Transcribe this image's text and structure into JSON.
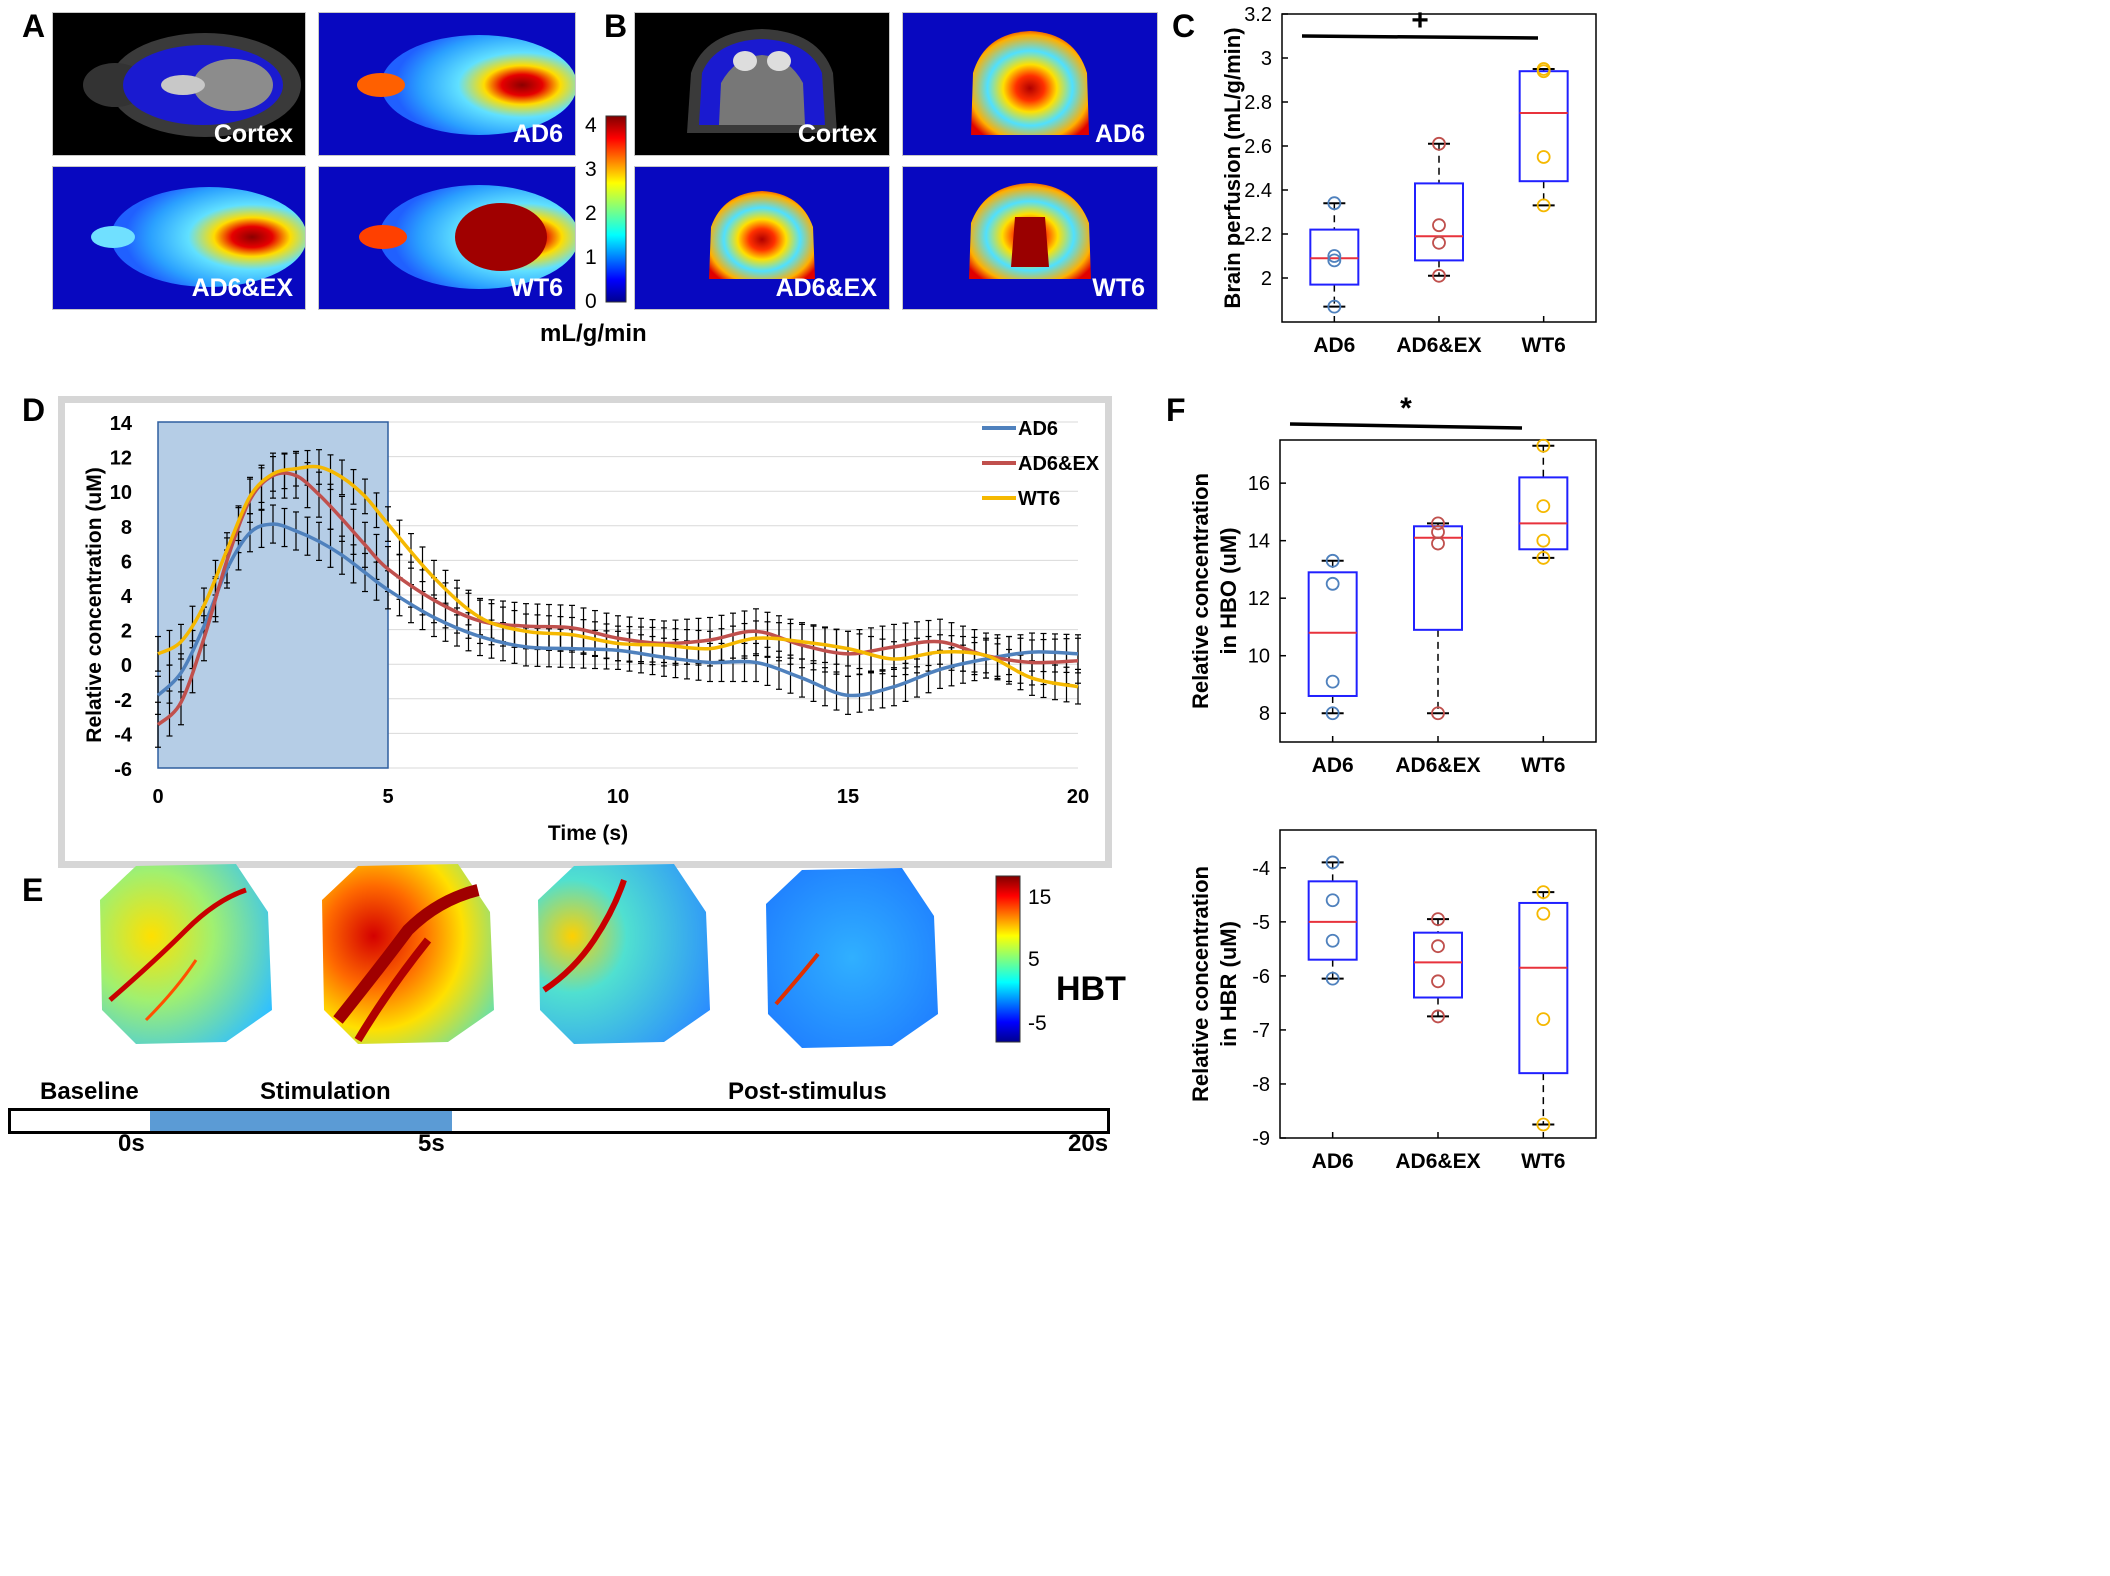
{
  "colors": {
    "ad6": "#4f81bd",
    "ad6ex": "#c0504d",
    "wt6": "#f5b800",
    "stim": "#b5cde6",
    "box": "#2020ff",
    "median": "#e8323c"
  },
  "panel_labels": {
    "a": "A",
    "b": "B",
    "c": "C",
    "d": "D",
    "e": "E",
    "f": "F"
  },
  "panel_a": {
    "cortex": "Cortex",
    "ad6": "AD6",
    "ad6ex": "AD6&EX",
    "wt6": "WT6"
  },
  "panel_b": {
    "cortex": "Cortex",
    "ad6": "AD6",
    "ad6ex": "AD6&EX",
    "wt6": "WT6"
  },
  "colorbar_cbf": {
    "ticks": [
      "4",
      "3",
      "2",
      "1",
      "0"
    ],
    "unit": "mL/g/min"
  },
  "colorbar_hbt": {
    "ticks": [
      "15",
      "5",
      "-5"
    ],
    "label": "HBT"
  },
  "timeline": {
    "baseline": "Baseline",
    "stimulation": "Stimulation",
    "post": "Post-stimulus",
    "t0": "0s",
    "t5": "5s",
    "t20": "20s"
  },
  "chart_data": [
    {
      "id": "C",
      "type": "box",
      "ylabel": "Brain perfusion (mL/g/min)",
      "ylim": [
        1.8,
        3.2
      ],
      "yticks": [
        2,
        2.2,
        2.4,
        2.6,
        2.8,
        3,
        3.2
      ],
      "categories": [
        "AD6",
        "AD6&EX",
        "WT6"
      ],
      "significance": "+",
      "boxes": [
        {
          "q1": 1.97,
          "median": 2.09,
          "q3": 2.22,
          "min": 1.87,
          "max": 2.34,
          "points": [
            2.34,
            2.1,
            2.08,
            1.87
          ]
        },
        {
          "q1": 2.08,
          "median": 2.19,
          "q3": 2.43,
          "min": 2.01,
          "max": 2.61,
          "points": [
            2.61,
            2.24,
            2.16,
            2.01
          ]
        },
        {
          "q1": 2.44,
          "median": 2.75,
          "q3": 2.94,
          "min": 2.33,
          "max": 2.95,
          "points": [
            2.95,
            2.94,
            2.55,
            2.33
          ]
        }
      ]
    },
    {
      "id": "D",
      "type": "line",
      "title": "",
      "xlabel": "Time (s)",
      "ylabel": "Relative concentration (uM)",
      "xlim": [
        0,
        20
      ],
      "ylim": [
        -6,
        14
      ],
      "xticks": [
        0,
        5,
        10,
        15,
        20
      ],
      "yticks": [
        -6,
        -4,
        -2,
        0,
        2,
        4,
        6,
        8,
        10,
        12,
        14
      ],
      "stimulus_window": [
        0,
        5
      ],
      "series": [
        {
          "name": "AD6",
          "color_key": "ad6",
          "error": 1.1,
          "x": [
            0,
            0.5,
            1,
            1.5,
            2,
            2.5,
            3,
            3.5,
            4,
            4.5,
            5,
            6,
            7,
            8,
            9,
            10,
            11,
            12,
            13,
            14,
            15,
            16,
            17,
            18,
            19,
            20
          ],
          "y": [
            -1.8,
            -0.5,
            2.2,
            5.5,
            7.6,
            8.1,
            7.7,
            7.1,
            6.3,
            5.3,
            4.3,
            2.7,
            1.6,
            1.0,
            0.9,
            0.8,
            0.4,
            0.1,
            0.1,
            -0.8,
            -1.8,
            -1.3,
            -0.3,
            0.3,
            0.7,
            0.6
          ]
        },
        {
          "name": "AD6&EX",
          "color_key": "ad6ex",
          "error": 1.3,
          "x": [
            0,
            0.5,
            1,
            1.5,
            2,
            2.5,
            3,
            3.5,
            4,
            4.5,
            5,
            6,
            7,
            8,
            9,
            10,
            11,
            12,
            13,
            14,
            15,
            16,
            17,
            18,
            19,
            20
          ],
          "y": [
            -3.5,
            -2.2,
            1.5,
            6.0,
            9.5,
            10.9,
            10.9,
            9.8,
            8.4,
            6.9,
            5.5,
            3.7,
            2.5,
            2.2,
            2.1,
            1.5,
            1.2,
            1.4,
            1.9,
            1.1,
            0.6,
            1.0,
            1.3,
            0.5,
            0.1,
            0.2
          ]
        },
        {
          "name": "WT6",
          "color_key": "wt6",
          "error": 1.0,
          "x": [
            0,
            0.5,
            1,
            1.5,
            2,
            2.5,
            3,
            3.5,
            4,
            4.5,
            5,
            6,
            7,
            8,
            9,
            10,
            11,
            12,
            13,
            14,
            15,
            16,
            17,
            18,
            19,
            20
          ],
          "y": [
            0.6,
            1.3,
            3.4,
            6.6,
            9.7,
            11.0,
            11.3,
            11.4,
            10.8,
            9.7,
            8.1,
            5.0,
            2.7,
            1.9,
            1.7,
            1.2,
            1.1,
            0.9,
            1.5,
            1.3,
            0.9,
            0.3,
            0.7,
            0.5,
            -0.8,
            -1.3
          ]
        }
      ]
    },
    {
      "id": "F-HBO",
      "type": "box",
      "ylabel": "Relative concentration in HBO (uM)",
      "ylim": [
        7,
        17.5
      ],
      "yticks": [
        8,
        10,
        12,
        14,
        16
      ],
      "categories": [
        "AD6",
        "AD6&EX",
        "WT6"
      ],
      "significance": "*",
      "boxes": [
        {
          "q1": 8.6,
          "median": 10.8,
          "q3": 12.9,
          "min": 8.0,
          "max": 13.3,
          "points": [
            13.3,
            12.5,
            9.1,
            8.0
          ]
        },
        {
          "q1": 10.9,
          "median": 14.1,
          "q3": 14.5,
          "min": 8.0,
          "max": 14.6,
          "points": [
            14.6,
            14.3,
            13.9,
            8.0
          ]
        },
        {
          "q1": 13.7,
          "median": 14.6,
          "q3": 16.2,
          "min": 13.4,
          "max": 17.3,
          "points": [
            17.3,
            15.2,
            14.0,
            13.4
          ]
        }
      ]
    },
    {
      "id": "F-HBR",
      "type": "box",
      "ylabel": "Relative concentration in HBR (uM)",
      "ylim": [
        -9,
        -3.3
      ],
      "yticks": [
        -9,
        -8,
        -7,
        -6,
        -5,
        -4
      ],
      "categories": [
        "AD6",
        "AD6&EX",
        "WT6"
      ],
      "boxes": [
        {
          "q1": -5.7,
          "median": -5.0,
          "q3": -4.25,
          "min": -6.05,
          "max": -3.9,
          "points": [
            -3.9,
            -4.6,
            -5.35,
            -6.05
          ]
        },
        {
          "q1": -6.4,
          "median": -5.75,
          "q3": -5.2,
          "min": -6.75,
          "max": -4.95,
          "points": [
            -4.95,
            -5.45,
            -6.1,
            -6.75
          ]
        },
        {
          "q1": -7.8,
          "median": -5.85,
          "q3": -4.65,
          "min": -8.75,
          "max": -4.45,
          "points": [
            -4.45,
            -4.85,
            -6.8,
            -8.75
          ]
        }
      ]
    }
  ]
}
